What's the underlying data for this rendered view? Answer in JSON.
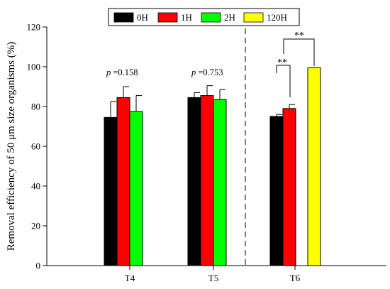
{
  "chart_data": {
    "type": "bar",
    "ylabel": "Removal efficiency of 50 μm size organisms (%)",
    "xlabel": "",
    "ylim": [
      0,
      120
    ],
    "yticks": [
      0,
      20,
      40,
      60,
      80,
      100,
      120
    ],
    "categories": [
      "T4",
      "T5",
      "T6"
    ],
    "series": [
      {
        "name": "0H",
        "color": "#000000",
        "values": [
          74.5,
          84.5,
          75.0
        ],
        "errors": [
          8.0,
          2.5,
          1.0
        ]
      },
      {
        "name": "1H",
        "color": "#ff0000",
        "values": [
          84.5,
          85.5,
          79.0
        ],
        "errors": [
          5.5,
          5.0,
          2.0
        ]
      },
      {
        "name": "2H",
        "color": "#00ff00",
        "values": [
          77.5,
          83.5,
          null
        ],
        "errors": [
          8.0,
          5.0,
          null
        ]
      },
      {
        "name": "120H",
        "color": "#ffff00",
        "values": [
          null,
          null,
          99.5
        ],
        "errors": [
          null,
          null,
          null
        ]
      }
    ],
    "annotations": {
      "p_T4": {
        "p": "p",
        "rest": " =0.158"
      },
      "p_T5": {
        "p": "p",
        "rest": " =0.753"
      },
      "sig_0H_1H": "**",
      "sig_0H_120H": "**"
    },
    "divider": {
      "between": [
        "T5",
        "T6"
      ],
      "style": "dashed"
    },
    "legend": {
      "position": "top",
      "items": [
        "0H",
        "1H",
        "2H",
        "120H"
      ]
    }
  }
}
